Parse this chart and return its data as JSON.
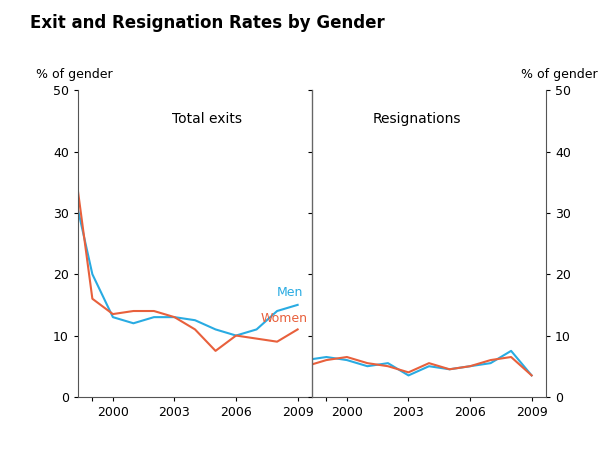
{
  "title": "Exit and Resignation Rates by Gender",
  "ylabel_left": "% of gender",
  "ylabel_right": "% of gender",
  "left_panel_label": "Total exits",
  "right_panel_label": "Resignations",
  "men_color": "#29ABE2",
  "women_color": "#E8603C",
  "ylim": [
    0,
    50
  ],
  "yticks": [
    0,
    10,
    20,
    30,
    40,
    50
  ],
  "xlim_left": [
    1998.3,
    2009.7
  ],
  "xlim_right": [
    1998.3,
    2009.7
  ],
  "exits_years": [
    1998,
    1999,
    2000,
    2001,
    2002,
    2003,
    2004,
    2005,
    2006,
    2007,
    2008,
    2009
  ],
  "exits_men": [
    35,
    20,
    13,
    12,
    13,
    13,
    12.5,
    11,
    10,
    11,
    14,
    15
  ],
  "exits_women": [
    41,
    16,
    13.5,
    14,
    14,
    13,
    11,
    7.5,
    10,
    9.5,
    9,
    11
  ],
  "resign_years": [
    1998,
    1999,
    2000,
    2001,
    2002,
    2003,
    2004,
    2005,
    2006,
    2007,
    2008,
    2009
  ],
  "resign_men": [
    6,
    6.5,
    6,
    5,
    5.5,
    3.5,
    5,
    4.5,
    5,
    5.5,
    7.5,
    3.5
  ],
  "resign_women": [
    5,
    6,
    6.5,
    5.5,
    5,
    4,
    5.5,
    4.5,
    5,
    6,
    6.5,
    3.5
  ],
  "men_label": "Men",
  "women_label": "Women",
  "background_color": "#ffffff",
  "divider_color": "#666666",
  "xtick_labels": [
    "",
    "2000",
    "2003",
    "2006",
    "2009"
  ],
  "xtick_positions": [
    1999,
    2000,
    2003,
    2006,
    2009
  ]
}
